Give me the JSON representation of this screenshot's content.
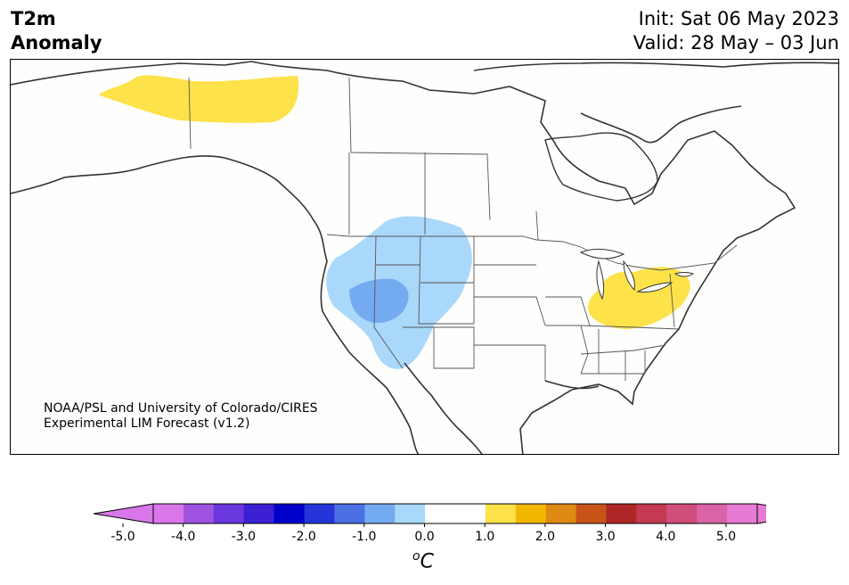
{
  "title": {
    "variable": "T2m",
    "subtitle": "Anomaly",
    "init": "Init: Sat 06 May 2023",
    "valid": "Valid: 28 May – 03 Jun"
  },
  "credit": {
    "line1": "NOAA/PSL and University of Colorado/CIRES",
    "line2": "Experimental LIM Forecast (v1.2)"
  },
  "colorbar": {
    "unit_main": "C",
    "unit_sup": "o",
    "ticks": [
      "-5.0",
      "-4.0",
      "-3.0",
      "-2.0",
      "-1.0",
      "0.0",
      "1.0",
      "2.0",
      "3.0",
      "4.0",
      "5.0"
    ],
    "colors": [
      "#d977ea",
      "#9f53e1",
      "#6a36dd",
      "#3c1fd3",
      "#0000cc",
      "#2535d9",
      "#4a70e4",
      "#74aaf0",
      "#a9d8fb",
      "#ffffff",
      "#ffffff",
      "#fde24a",
      "#f2b800",
      "#df8a13",
      "#c85319",
      "#af2626",
      "#c53a52",
      "#d04e7c",
      "#d963a6",
      "#e77ad2"
    ],
    "under_color": "#d977ea",
    "over_color": "#e77ad2"
  },
  "map": {
    "region": "North America",
    "anomalies": [
      {
        "label": "warm",
        "color": "#fde24a",
        "area": "northern Yukon / NWT"
      },
      {
        "label": "warm",
        "color": "#fde24a",
        "area": "Ohio Valley"
      },
      {
        "label": "cool",
        "color": "#a9d8fb",
        "area": "western US"
      },
      {
        "label": "cool",
        "color": "#74aaf0",
        "area": "Nevada / Utah"
      }
    ]
  }
}
